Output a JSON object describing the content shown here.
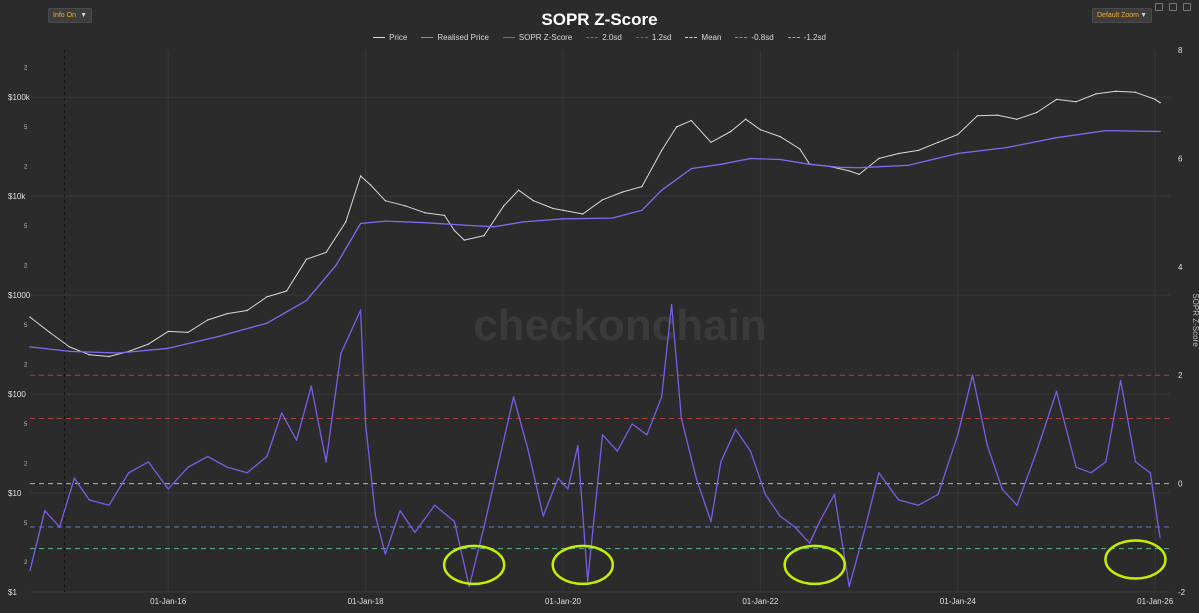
{
  "controls": {
    "info_label": "Info On",
    "zoom_label": "Default Zoom",
    "dropdown_icon": "chevron-down-icon"
  },
  "colors": {
    "background": "#2b2b2b",
    "price": "#d9d9d9",
    "realised": "#7b6cf0",
    "zscore": "#7b5ce6",
    "sd2": "#c2463c",
    "sd12": "#c2463c",
    "mean": "#cfcfcf",
    "sdm08": "#5a8fd6",
    "sdm12": "#5fcf9a",
    "annotation": "#c4f000"
  },
  "chart_data": {
    "type": "line",
    "title": "SOPR Z-Score",
    "legend": [
      {
        "label": "Price",
        "style": "solid",
        "color": "#d9d9d9"
      },
      {
        "label": "Realised Price",
        "style": "solid",
        "color": "#8a7cf5"
      },
      {
        "label": "SOPR Z-Score",
        "style": "solid",
        "color": "#7b5ce6"
      },
      {
        "label": "2.0sd",
        "style": "dash",
        "color": "#c2463c"
      },
      {
        "label": "1.2sd",
        "style": "dash",
        "color": "#c2463c"
      },
      {
        "label": "Mean",
        "style": "dash",
        "color": "#cfcfcf"
      },
      {
        "label": "-0.8sd",
        "style": "dash",
        "color": "#5a8fd6"
      },
      {
        "label": "-1.2sd",
        "style": "dash",
        "color": "#5fcf9a"
      }
    ],
    "left_axis": {
      "scale": "log",
      "range": [
        1,
        300000
      ],
      "major_ticks": [
        {
          "v": 1,
          "label": "$1"
        },
        {
          "v": 10,
          "label": "$10"
        },
        {
          "v": 100,
          "label": "$100"
        },
        {
          "v": 1000,
          "label": "$1000"
        },
        {
          "v": 10000,
          "label": "$10k"
        },
        {
          "v": 100000,
          "label": "$100k"
        }
      ],
      "minor_ticks": [
        {
          "v": 2,
          "label": "2"
        },
        {
          "v": 5,
          "label": "5"
        },
        {
          "v": 20,
          "label": "2"
        },
        {
          "v": 50,
          "label": "5"
        },
        {
          "v": 200,
          "label": "2"
        },
        {
          "v": 500,
          "label": "5"
        },
        {
          "v": 2000,
          "label": "2"
        },
        {
          "v": 5000,
          "label": "5"
        },
        {
          "v": 20000,
          "label": "2"
        },
        {
          "v": 50000,
          "label": "5"
        },
        {
          "v": 200000,
          "label": "2"
        }
      ]
    },
    "right_axis": {
      "label": "SOPR Z-Score",
      "range": [
        -2,
        8
      ],
      "ticks": [
        {
          "v": -2,
          "label": "-2"
        },
        {
          "v": 0,
          "label": "0"
        },
        {
          "v": 2,
          "label": "2"
        },
        {
          "v": 4,
          "label": "4"
        },
        {
          "v": 6,
          "label": "6"
        },
        {
          "v": 8,
          "label": "8"
        }
      ]
    },
    "x_axis": {
      "range": [
        2014.6,
        2026.15
      ],
      "ticks": [
        {
          "v": 2016,
          "label": "01-Jan-16"
        },
        {
          "v": 2018,
          "label": "01-Jan-18"
        },
        {
          "v": 2020,
          "label": "01-Jan-20"
        },
        {
          "v": 2022,
          "label": "01-Jan-22"
        },
        {
          "v": 2024,
          "label": "01-Jan-24"
        },
        {
          "v": 2026,
          "label": "01-Jan-26"
        }
      ]
    },
    "bands": [
      {
        "name": "2.0sd",
        "value": 2.0
      },
      {
        "name": "1.2sd",
        "value": 1.2
      },
      {
        "name": "Mean",
        "value": 0.0
      },
      {
        "name": "-0.8sd",
        "value": -0.8
      },
      {
        "name": "-1.2sd",
        "value": -1.2
      }
    ],
    "series": [
      {
        "name": "Price",
        "axis": "left",
        "x": [
          2014.6,
          2014.8,
          2015.0,
          2015.2,
          2015.4,
          2015.6,
          2015.8,
          2016.0,
          2016.2,
          2016.4,
          2016.6,
          2016.8,
          2017.0,
          2017.2,
          2017.4,
          2017.6,
          2017.8,
          2017.95,
          2018.05,
          2018.2,
          2018.4,
          2018.6,
          2018.8,
          2018.9,
          2019.0,
          2019.2,
          2019.4,
          2019.55,
          2019.7,
          2019.9,
          2020.0,
          2020.2,
          2020.4,
          2020.6,
          2020.8,
          2021.0,
          2021.15,
          2021.3,
          2021.5,
          2021.7,
          2021.85,
          2022.0,
          2022.2,
          2022.4,
          2022.5,
          2022.7,
          2022.9,
          2023.0,
          2023.2,
          2023.4,
          2023.6,
          2023.8,
          2024.0,
          2024.2,
          2024.4,
          2024.6,
          2024.8,
          2025.0,
          2025.2,
          2025.4,
          2025.6,
          2025.8,
          2026.0,
          2026.05
        ],
        "y": [
          600,
          420,
          300,
          250,
          240,
          270,
          320,
          430,
          420,
          560,
          650,
          700,
          960,
          1100,
          2300,
          2700,
          5500,
          16000,
          13000,
          9000,
          8000,
          6800,
          6400,
          4500,
          3600,
          4000,
          8000,
          11500,
          9000,
          7500,
          7200,
          6600,
          9200,
          11000,
          12500,
          29000,
          50000,
          58000,
          35000,
          45000,
          60000,
          47000,
          40000,
          30000,
          21000,
          20000,
          18000,
          16600,
          24000,
          27000,
          29000,
          35000,
          42000,
          65000,
          66000,
          60000,
          70000,
          95000,
          90000,
          108000,
          115000,
          112000,
          95000,
          88000
        ]
      },
      {
        "name": "Realised Price",
        "axis": "left",
        "x": [
          2014.6,
          2015.0,
          2015.5,
          2016.0,
          2016.5,
          2017.0,
          2017.4,
          2017.7,
          2017.95,
          2018.2,
          2018.6,
          2019.0,
          2019.3,
          2019.6,
          2020.0,
          2020.5,
          2020.8,
          2021.0,
          2021.3,
          2021.6,
          2021.9,
          2022.2,
          2022.5,
          2022.8,
          2023.0,
          2023.5,
          2024.0,
          2024.5,
          2025.0,
          2025.5,
          2026.05
        ],
        "y": [
          300,
          270,
          260,
          290,
          380,
          520,
          880,
          2000,
          5300,
          5600,
          5400,
          5100,
          4900,
          5500,
          5900,
          6000,
          7200,
          11500,
          19000,
          21000,
          24000,
          23500,
          21000,
          19600,
          19400,
          20500,
          27000,
          31000,
          39000,
          46000,
          45000
        ]
      },
      {
        "name": "SOPR Z-Score",
        "axis": "right",
        "x": [
          2014.6,
          2014.75,
          2014.9,
          2015.05,
          2015.2,
          2015.4,
          2015.6,
          2015.8,
          2016.0,
          2016.2,
          2016.4,
          2016.6,
          2016.8,
          2017.0,
          2017.15,
          2017.3,
          2017.45,
          2017.6,
          2017.75,
          2017.95,
          2018.0,
          2018.1,
          2018.2,
          2018.35,
          2018.5,
          2018.7,
          2018.9,
          2019.05,
          2019.2,
          2019.35,
          2019.5,
          2019.65,
          2019.8,
          2019.95,
          2020.05,
          2020.15,
          2020.25,
          2020.4,
          2020.55,
          2020.7,
          2020.85,
          2021.0,
          2021.1,
          2021.2,
          2021.35,
          2021.5,
          2021.6,
          2021.75,
          2021.9,
          2022.05,
          2022.2,
          2022.35,
          2022.5,
          2022.6,
          2022.75,
          2022.9,
          2023.05,
          2023.2,
          2023.4,
          2023.6,
          2023.8,
          2024.0,
          2024.15,
          2024.3,
          2024.45,
          2024.6,
          2024.8,
          2025.0,
          2025.2,
          2025.35,
          2025.5,
          2025.65,
          2025.8,
          2025.95,
          2026.05
        ],
        "y": [
          -1.6,
          -0.5,
          -0.8,
          0.1,
          -0.3,
          -0.4,
          0.2,
          0.4,
          -0.1,
          0.3,
          0.5,
          0.3,
          0.2,
          0.5,
          1.3,
          0.8,
          1.8,
          0.4,
          2.4,
          3.2,
          1.1,
          -0.6,
          -1.3,
          -0.5,
          -0.9,
          -0.4,
          -0.7,
          -1.9,
          -0.8,
          0.4,
          1.6,
          0.6,
          -0.6,
          0.1,
          -0.1,
          0.7,
          -1.8,
          0.9,
          0.6,
          1.1,
          0.9,
          1.6,
          3.3,
          1.2,
          0.1,
          -0.7,
          0.4,
          1.0,
          0.6,
          -0.2,
          -0.6,
          -0.8,
          -1.1,
          -0.7,
          -0.2,
          -1.9,
          -0.9,
          0.2,
          -0.3,
          -0.4,
          -0.2,
          0.9,
          2.0,
          0.7,
          -0.1,
          -0.4,
          0.6,
          1.7,
          0.3,
          0.2,
          0.4,
          1.9,
          0.4,
          0.2,
          -1.0
        ]
      }
    ],
    "annotations": [
      {
        "type": "circle",
        "x": 2019.1,
        "y": -1.5
      },
      {
        "type": "circle",
        "x": 2020.2,
        "y": -1.5
      },
      {
        "type": "circle",
        "x": 2022.55,
        "y": -1.5
      },
      {
        "type": "circle",
        "x": 2025.8,
        "y": -1.4
      }
    ],
    "watermark": "checkonchain"
  }
}
